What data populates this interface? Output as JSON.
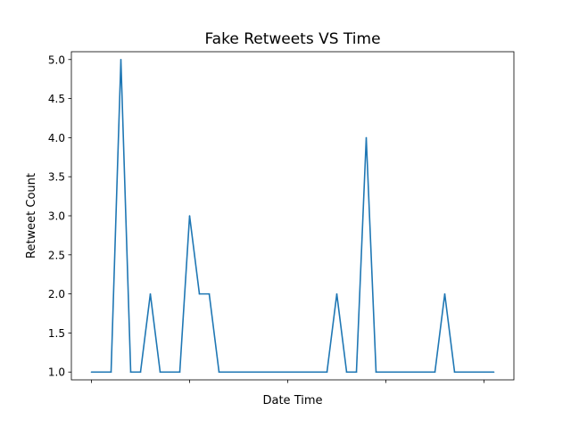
{
  "chart_data": {
    "type": "line",
    "title": "Fake Retweets VS Time",
    "xlabel": "Date Time",
    "ylabel": "Retweet Count",
    "x_tick_labels": [
      "",
      "",
      "",
      "",
      ""
    ],
    "ylim": [
      0.9,
      5.1
    ],
    "yticks": [
      1.0,
      1.5,
      2.0,
      2.5,
      3.0,
      3.5,
      4.0,
      4.5,
      5.0
    ],
    "ytick_labels": [
      "1.0",
      "1.5",
      "2.0",
      "2.5",
      "3.0",
      "3.5",
      "4.0",
      "4.5",
      "5.0"
    ],
    "grid": false,
    "series": [
      {
        "color": "#1f77b4",
        "values": [
          1,
          1,
          1,
          5,
          1,
          1,
          2,
          1,
          1,
          1,
          3,
          2,
          2,
          1,
          1,
          1,
          1,
          1,
          1,
          1,
          1,
          1,
          1,
          1,
          1,
          2,
          1,
          1,
          4,
          1,
          1,
          1,
          1,
          1,
          1,
          1,
          2,
          1,
          1,
          1,
          1,
          1
        ]
      }
    ]
  }
}
